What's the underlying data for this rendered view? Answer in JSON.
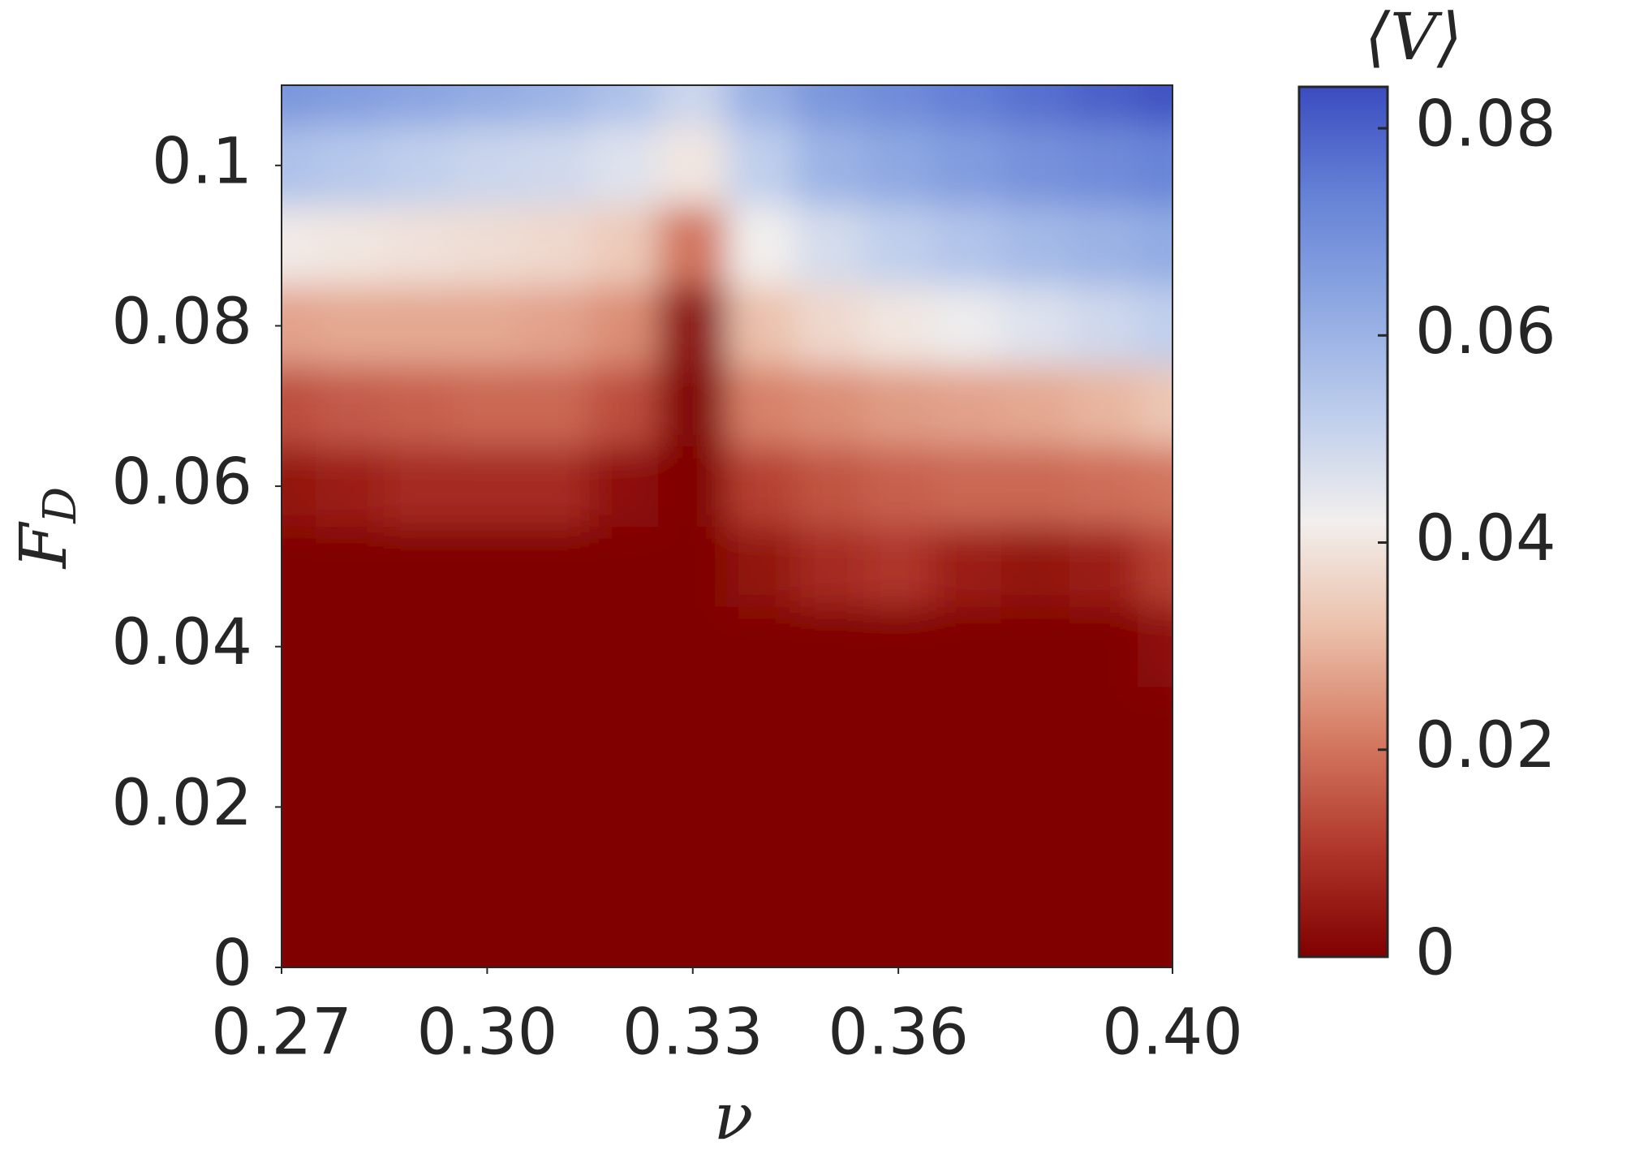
{
  "chart_data": {
    "type": "heatmap",
    "xlabel": "ν",
    "ylabel": {
      "main": "F",
      "sub": "D"
    },
    "colorbar_label": "⟨V⟩",
    "x": [
      0.27,
      0.28,
      0.29,
      0.3,
      0.31,
      0.32,
      0.33,
      0.34,
      0.35,
      0.36,
      0.37,
      0.38,
      0.39,
      0.4
    ],
    "y": [
      0,
      0.01,
      0.02,
      0.03,
      0.04,
      0.05,
      0.06,
      0.07,
      0.08,
      0.09,
      0.1,
      0.11
    ],
    "values": [
      [
        0,
        0,
        0,
        0,
        0,
        0,
        0,
        0,
        0,
        0,
        0,
        0,
        0,
        0
      ],
      [
        0,
        0,
        0,
        0,
        0,
        0,
        0,
        0,
        0,
        0,
        0,
        0,
        0,
        0
      ],
      [
        0,
        0,
        0,
        0,
        0,
        0,
        0,
        0,
        0,
        0,
        0,
        0,
        0,
        0
      ],
      [
        0,
        0,
        0,
        0,
        0,
        0,
        0,
        0,
        0,
        0,
        0,
        0,
        0,
        0
      ],
      [
        0,
        0,
        0,
        0,
        0,
        0,
        0,
        0,
        0,
        0,
        0,
        0,
        0,
        0.003
      ],
      [
        0,
        0,
        0,
        0,
        0,
        0,
        0,
        0.004,
        0.008,
        0.01,
        0.006,
        0.004,
        0.006,
        0.012
      ],
      [
        0.004,
        0.006,
        0.008,
        0.008,
        0.008,
        0.003,
        0,
        0.012,
        0.015,
        0.017,
        0.018,
        0.018,
        0.019,
        0.02
      ],
      [
        0.014,
        0.016,
        0.017,
        0.018,
        0.018,
        0.014,
        0,
        0.022,
        0.024,
        0.026,
        0.027,
        0.028,
        0.03,
        0.033
      ],
      [
        0.027,
        0.028,
        0.028,
        0.028,
        0.027,
        0.024,
        0.002,
        0.032,
        0.037,
        0.04,
        0.043,
        0.046,
        0.049,
        0.052
      ],
      [
        0.041,
        0.04,
        0.039,
        0.038,
        0.037,
        0.034,
        0.02,
        0.042,
        0.048,
        0.052,
        0.055,
        0.058,
        0.06,
        0.062
      ],
      [
        0.056,
        0.054,
        0.052,
        0.05,
        0.049,
        0.046,
        0.04,
        0.052,
        0.06,
        0.063,
        0.066,
        0.069,
        0.071,
        0.073
      ],
      [
        0.068,
        0.066,
        0.064,
        0.062,
        0.06,
        0.056,
        0.05,
        0.061,
        0.068,
        0.071,
        0.074,
        0.077,
        0.08,
        0.083
      ]
    ],
    "xlim": [
      0.27,
      0.4
    ],
    "ylim": [
      0,
      0.11
    ],
    "clim": [
      0,
      0.084
    ],
    "xticks": [
      {
        "value": 0.27,
        "label": "0.27"
      },
      {
        "value": 0.3,
        "label": "0.30"
      },
      {
        "value": 0.33,
        "label": "0.33"
      },
      {
        "value": 0.36,
        "label": "0.36"
      },
      {
        "value": 0.4,
        "label": "0.40"
      }
    ],
    "yticks": [
      0,
      0.02,
      0.04,
      0.06,
      0.08,
      0.1
    ],
    "cticks": [
      0,
      0.02,
      0.04,
      0.06,
      0.08
    ],
    "colormap": [
      "#800000",
      "#b0372b",
      "#d57a62",
      "#ebbfa9",
      "#f2efed",
      "#bdcdec",
      "#8ea8e2",
      "#6582d6",
      "#3b4cc0"
    ]
  }
}
